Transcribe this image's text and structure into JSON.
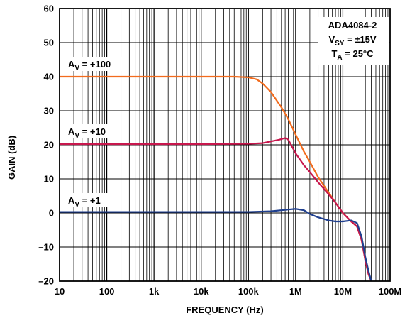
{
  "chart_data": {
    "type": "line",
    "xlabel": "FREQUENCY (Hz)",
    "ylabel": "GAIN (dB)",
    "x_scale": "log",
    "xlim": [
      10,
      100000000
    ],
    "ylim": [
      -20,
      60
    ],
    "grid": true,
    "x_tick_labels": [
      "10",
      "100",
      "1k",
      "10k",
      "100k",
      "1M",
      "10M",
      "100M"
    ],
    "x_tick_values": [
      10,
      100,
      1000,
      10000,
      100000,
      1000000,
      10000000,
      100000000
    ],
    "y_tick_labels": [
      "–20",
      "–10",
      "0",
      "10",
      "20",
      "30",
      "40",
      "50",
      "60"
    ],
    "y_tick_values": [
      -20,
      -10,
      0,
      10,
      20,
      30,
      40,
      50,
      60
    ],
    "info_box": {
      "line1": "ADA4084-2",
      "line2_main": "V",
      "line2_sub": "SY",
      "line2_rest": " = ±15V",
      "line3_main": "T",
      "line3_sub": "A",
      "line3_rest": " = 25°C"
    },
    "series": [
      {
        "label_main": "A",
        "label_sub": "V",
        "label_rest": " = +100",
        "color": "#f26b1d",
        "x": [
          10,
          100,
          1000,
          10000,
          50000,
          100000,
          150000,
          200000,
          300000,
          500000,
          700000,
          1000000,
          1500000,
          2000000,
          3000000,
          5000000,
          7000000,
          10000000,
          15000000,
          20000000,
          25000000,
          30000000,
          35000000,
          40000000
        ],
        "y": [
          40,
          40,
          40,
          40,
          40,
          39.8,
          39.2,
          38,
          35.5,
          31,
          27.5,
          23,
          18,
          15,
          10.5,
          6,
          3,
          0,
          -2.5,
          -4,
          -8,
          -14,
          -18,
          -20
        ]
      },
      {
        "label_main": "A",
        "label_sub": "V",
        "label_rest": " = +10",
        "color": "#c8174d",
        "x": [
          10,
          100,
          1000,
          10000,
          100000,
          200000,
          300000,
          450000,
          600000,
          700000,
          800000,
          1000000,
          1500000,
          2000000,
          3000000,
          5000000,
          7000000,
          10000000,
          15000000,
          20000000,
          25000000,
          30000000,
          35000000,
          40000000
        ],
        "y": [
          20.2,
          20.2,
          20.2,
          20.2,
          20.3,
          20.5,
          21,
          21.5,
          22,
          21.5,
          20,
          17.5,
          14,
          12,
          9,
          5.5,
          3,
          0,
          -2.5,
          -4,
          -8,
          -14,
          -18,
          -20
        ]
      },
      {
        "label_main": "A",
        "label_sub": "V",
        "label_rest": " = +1",
        "color": "#1f3f8f",
        "x": [
          10,
          100,
          1000,
          10000,
          100000,
          300000,
          700000,
          1000000,
          1500000,
          2000000,
          3000000,
          5000000,
          7000000,
          10000000,
          15000000,
          20000000,
          25000000,
          30000000,
          35000000,
          40000000
        ],
        "y": [
          0.3,
          0.3,
          0.3,
          0.3,
          0.3,
          0.5,
          1,
          1.2,
          0.8,
          -0.3,
          -1.3,
          -2.2,
          -2.5,
          -2.5,
          -2.2,
          -3,
          -7,
          -13,
          -17,
          -20
        ]
      }
    ]
  }
}
